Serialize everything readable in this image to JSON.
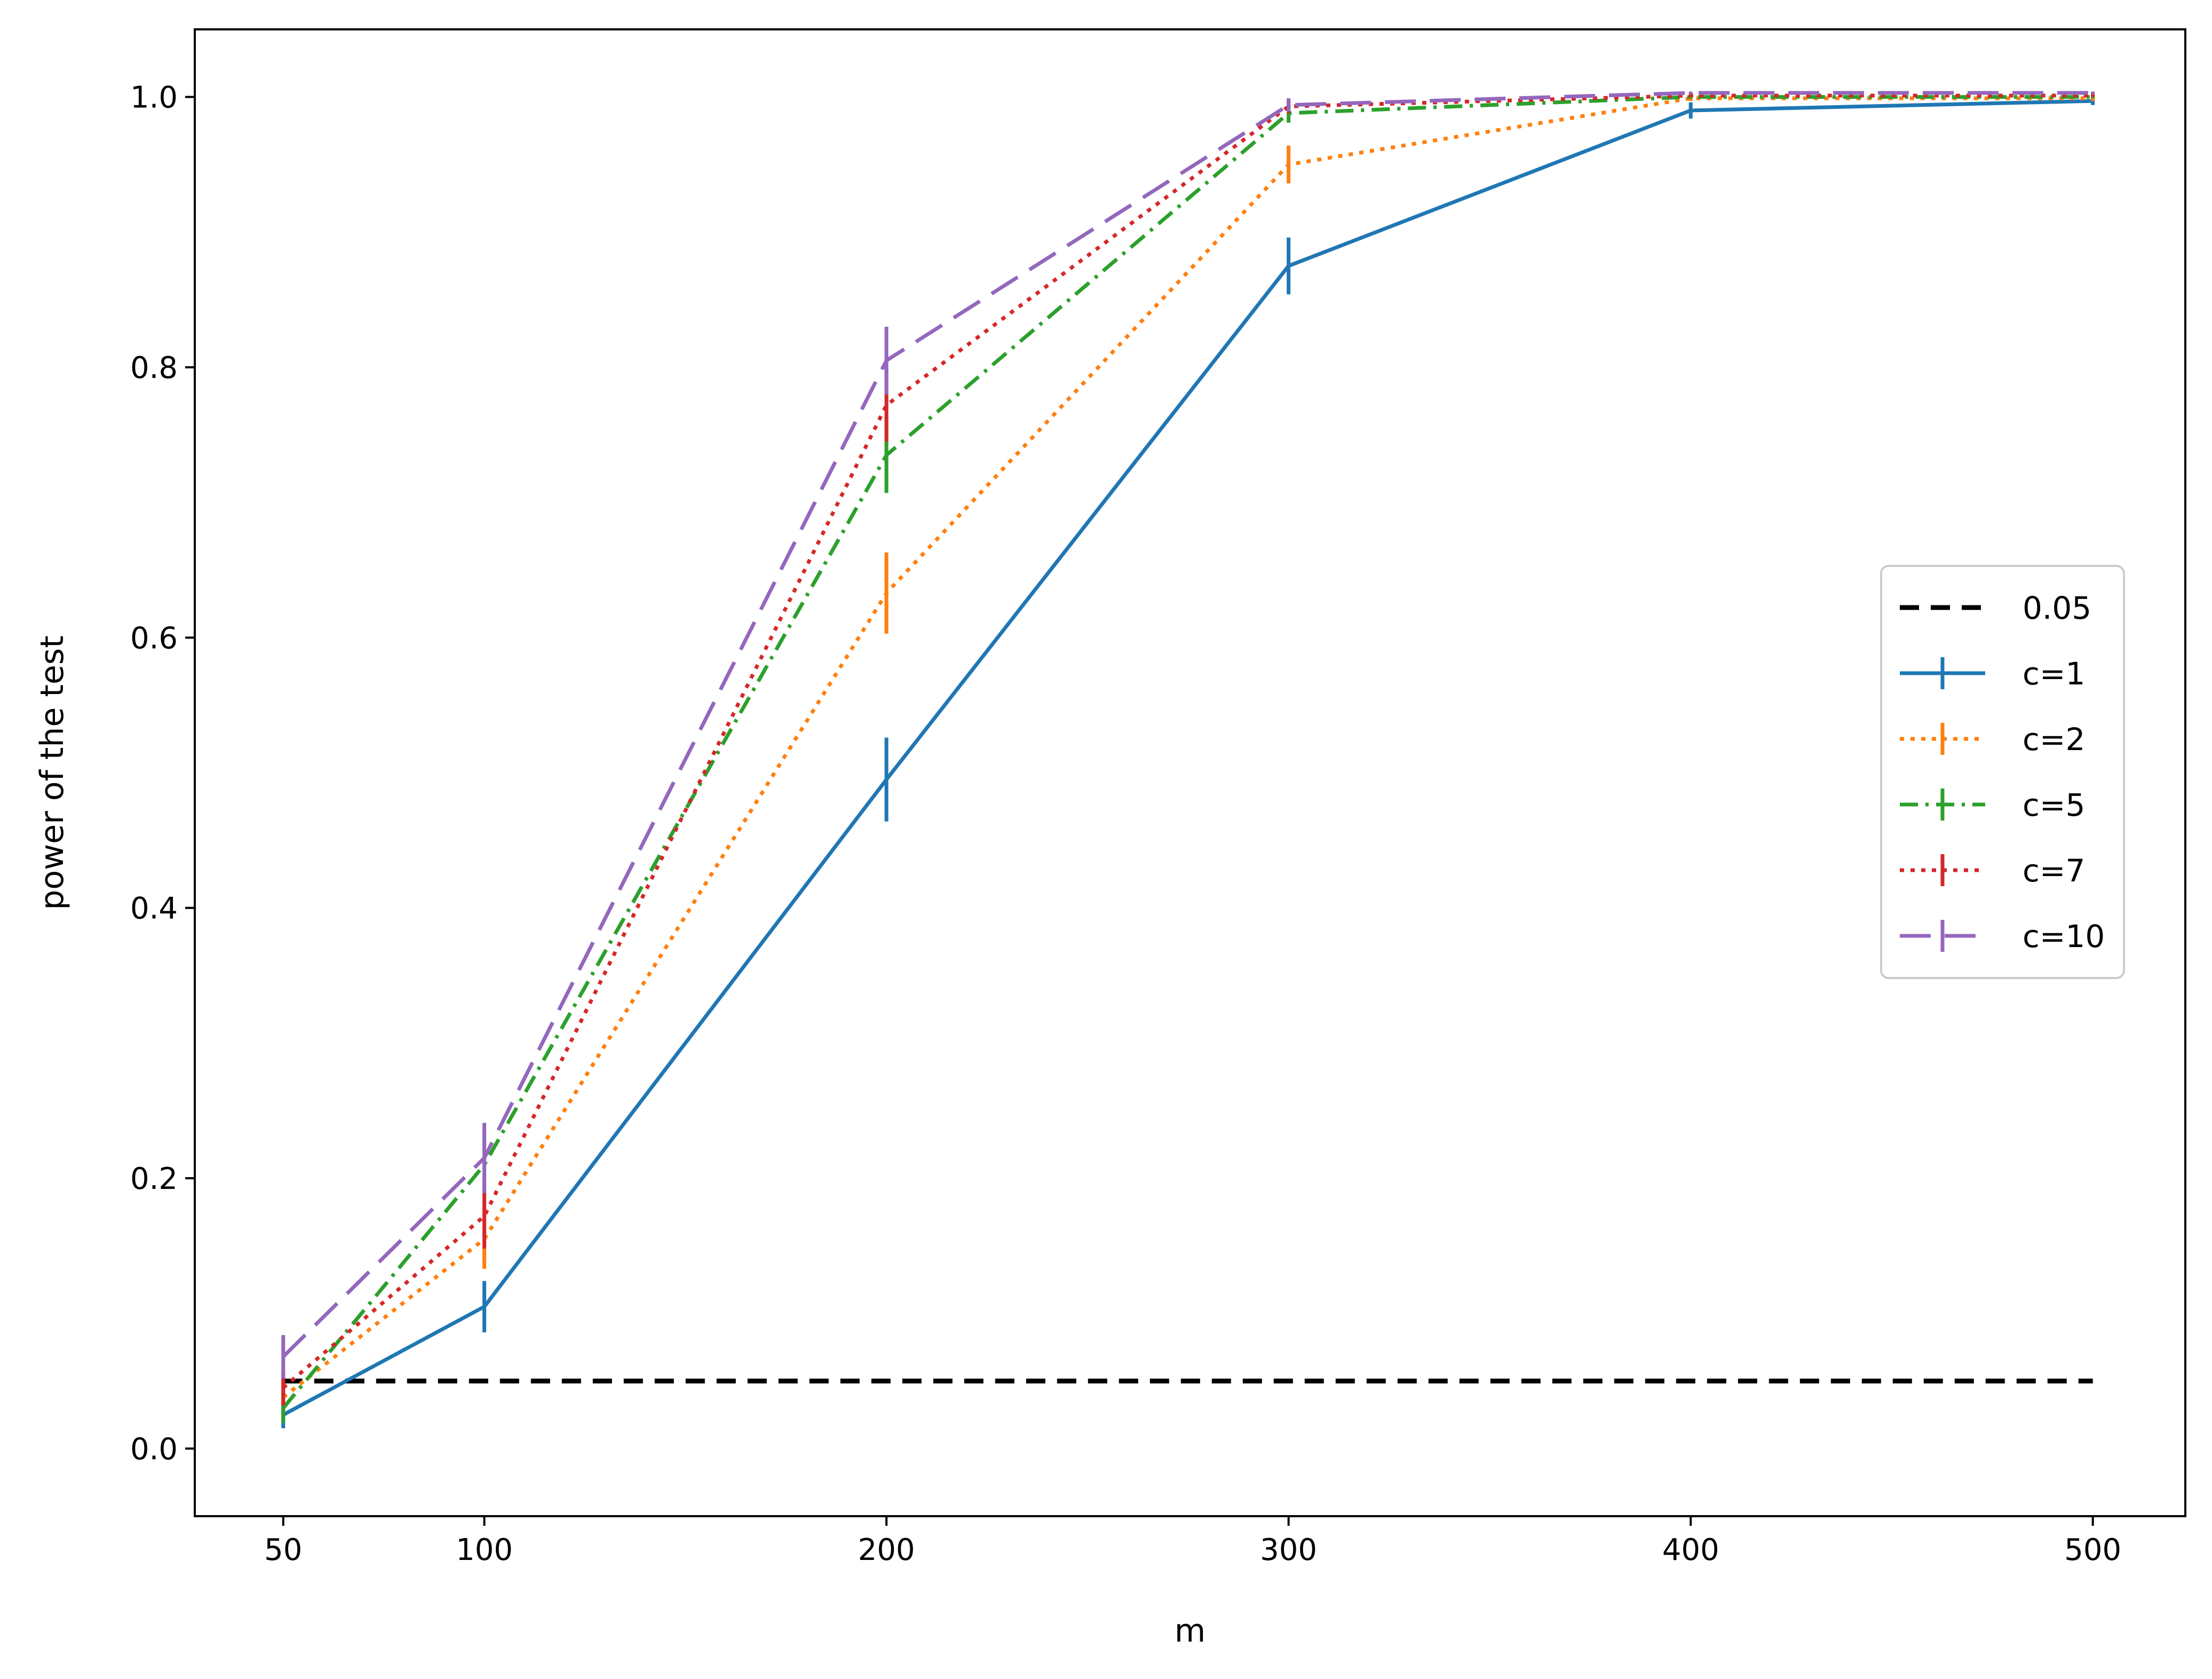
{
  "chart_data": {
    "type": "line",
    "title": "",
    "xlabel": "m",
    "ylabel": "power of the test",
    "x": [
      50,
      100,
      200,
      300,
      400,
      500
    ],
    "xticks": [
      50,
      100,
      200,
      300,
      400,
      500
    ],
    "yticks": [
      0.0,
      0.2,
      0.4,
      0.6,
      0.8,
      1.0
    ],
    "ytick_labels": [
      "0.0",
      "0.2",
      "0.4",
      "0.6",
      "0.8",
      "1.0"
    ],
    "xlim": [
      28,
      523
    ],
    "ylim": [
      -0.05,
      1.05
    ],
    "grid": false,
    "legend_position": "right",
    "reference_line": {
      "name": "0.05",
      "value": 0.05,
      "color": "#000000"
    },
    "series": [
      {
        "name": "c=1",
        "color": "#1f77b4",
        "style": "solid",
        "values": [
          0.025,
          0.105,
          0.495,
          0.875,
          0.99,
          0.997
        ],
        "errors": [
          0.01,
          0.019,
          0.031,
          0.021,
          0.006,
          0.003
        ]
      },
      {
        "name": "c=2",
        "color": "#ff7f0e",
        "style": "dotted",
        "values": [
          0.038,
          0.155,
          0.633,
          0.95,
          0.999,
          0.999
        ],
        "errors": [
          0.012,
          0.022,
          0.03,
          0.014,
          0.002,
          0.002
        ]
      },
      {
        "name": "c=5",
        "color": "#2ca02c",
        "style": "dashdot",
        "values": [
          0.03,
          0.21,
          0.735,
          0.988,
          1.0,
          1.0
        ],
        "errors": [
          0.011,
          0.026,
          0.028,
          0.007,
          0.001,
          0.001
        ]
      },
      {
        "name": "c=7",
        "color": "#d62728",
        "style": "dotted",
        "values": [
          0.045,
          0.172,
          0.772,
          0.993,
          1.001,
          1.001
        ],
        "errors": [
          0.013,
          0.024,
          0.027,
          0.005,
          0.001,
          0.001
        ]
      },
      {
        "name": "c=10",
        "color": "#9467bd",
        "style": "longdash",
        "values": [
          0.068,
          0.215,
          0.805,
          0.994,
          1.003,
          1.003
        ],
        "errors": [
          0.016,
          0.026,
          0.025,
          0.005,
          0.001,
          0.001
        ]
      }
    ]
  }
}
